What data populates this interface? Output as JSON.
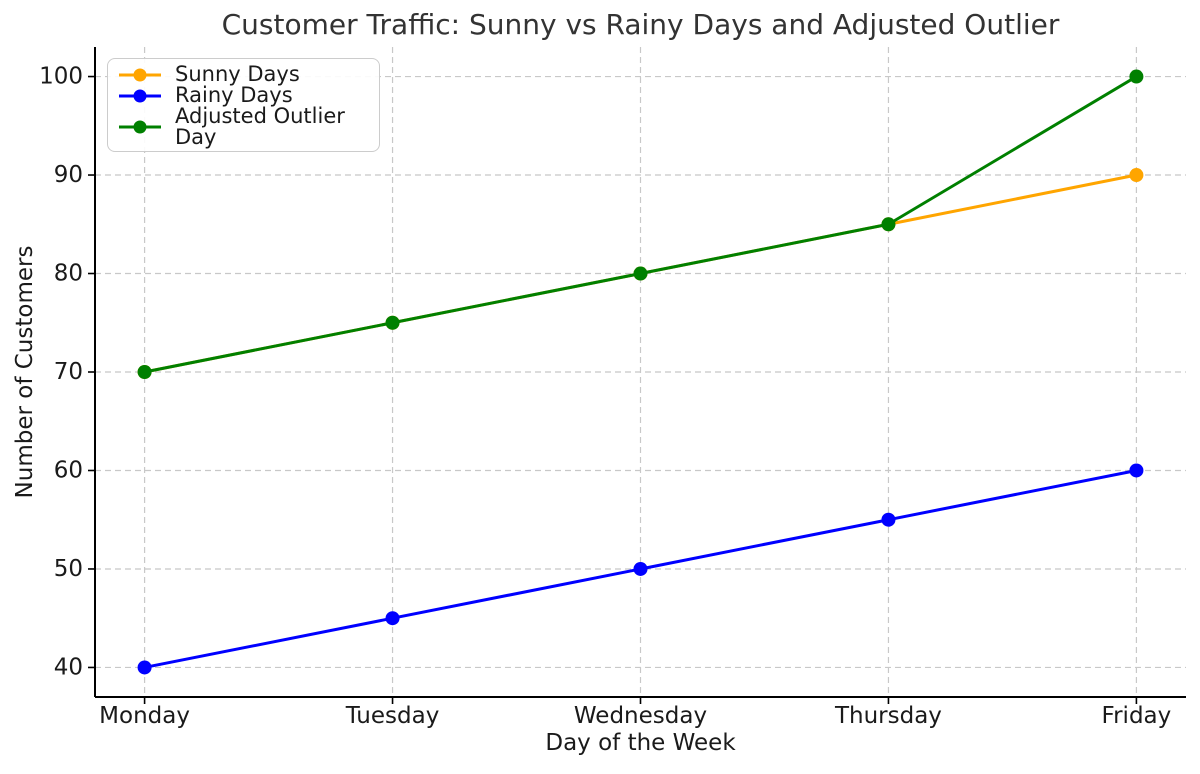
{
  "chart_data": {
    "type": "line",
    "title": "Customer Traffic: Sunny vs Rainy Days and Adjusted Outlier",
    "xlabel": "Day of the Week",
    "ylabel": "Number of Customers",
    "categories": [
      "Monday",
      "Tuesday",
      "Wednesday",
      "Thursday",
      "Friday"
    ],
    "series": [
      {
        "name": "Sunny Days",
        "color": "#FFA500",
        "marker": "circle",
        "values": [
          70,
          75,
          80,
          85,
          90
        ]
      },
      {
        "name": "Rainy Days",
        "color": "#0000FF",
        "marker": "circle",
        "values": [
          40,
          45,
          50,
          55,
          60
        ]
      },
      {
        "name": "Adjusted Outlier Day",
        "color": "#008000",
        "marker": "circle",
        "values": [
          70,
          75,
          80,
          85,
          100
        ]
      }
    ],
    "yticks": [
      40,
      50,
      60,
      70,
      80,
      90,
      100
    ],
    "ylim": [
      37,
      103
    ],
    "xlim": [
      -0.2,
      4.2
    ],
    "grid": true,
    "grid_style": "dashed",
    "grid_color": "#c8c8c8",
    "spine_color": "#000000",
    "tick_label_color": "#1a1a1a",
    "title_color": "#333333",
    "legend_position": "upper left",
    "background": "#ffffff"
  }
}
